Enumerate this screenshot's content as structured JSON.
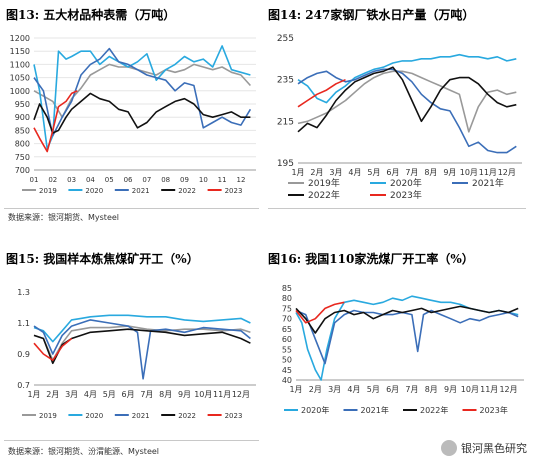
{
  "colors": {
    "y2019": "#999999",
    "y2020": "#29a9df",
    "y2021": "#3b6eb8",
    "y2022": "#111111",
    "y2023": "#e8281f"
  },
  "panels": [
    {
      "title": "图13: 五大材品种表需（万吨）",
      "source": "数据来源：银河期货、Mysteel"
    },
    {
      "title": "图14: 247家钢厂铁水日产量（万吨）",
      "source": ""
    },
    {
      "title": "图15: 我国样本炼焦煤矿开工（%）",
      "source": "数据来源：银河期货、汾渭能源、Mysteel"
    },
    {
      "title": "图16: 我国110家洗煤厂开工率（%）",
      "source": ""
    }
  ],
  "watermark": "银河黑色研究",
  "chart_data": [
    {
      "type": "line",
      "xlabels": [
        "01",
        "02",
        "03",
        "04",
        "05",
        "06",
        "07",
        "08",
        "09",
        "10",
        "11",
        "12"
      ],
      "ylim": [
        700,
        1200
      ],
      "yticks": [
        700,
        750,
        800,
        850,
        900,
        950,
        1000,
        1050,
        1100,
        1150,
        1200
      ],
      "legend": [
        "2019",
        "2020",
        "2021",
        "2022",
        "2023"
      ],
      "legend_position": "bottom",
      "series": [
        {
          "name": "2019",
          "x": [
            1,
            1.5,
            2,
            2.5,
            3,
            3.5,
            4,
            4.5,
            5,
            5.5,
            6,
            6.5,
            7,
            7.5,
            8,
            8.5,
            9,
            9.5,
            10,
            10.5,
            11,
            11.5,
            12,
            12.5
          ],
          "values": [
            1000,
            980,
            960,
            900,
            970,
            1010,
            1060,
            1080,
            1100,
            1090,
            1090,
            1080,
            1070,
            1060,
            1080,
            1070,
            1080,
            1100,
            1090,
            1080,
            1090,
            1070,
            1060,
            1020
          ]
        },
        {
          "name": "2020",
          "x": [
            1,
            1.3,
            1.7,
            2,
            2.3,
            2.7,
            3,
            3.5,
            4,
            4.5,
            5,
            5.5,
            6,
            6.5,
            7,
            7.5,
            8,
            8.5,
            9,
            9.5,
            10,
            10.5,
            11,
            11.5,
            12,
            12.5
          ],
          "values": [
            1100,
            1000,
            780,
            830,
            1150,
            1120,
            1130,
            1150,
            1150,
            1100,
            1130,
            1110,
            1090,
            1110,
            1140,
            1040,
            1080,
            1100,
            1130,
            1110,
            1120,
            1090,
            1170,
            1080,
            1070,
            1060
          ]
        },
        {
          "name": "2021",
          "x": [
            1,
            1.5,
            2,
            2.5,
            3,
            3.5,
            4,
            4.5,
            5,
            5.5,
            6,
            6.5,
            7,
            7.5,
            8,
            8.5,
            9,
            9.5,
            10,
            10.5,
            11,
            11.5,
            12,
            12.5
          ],
          "values": [
            1050,
            1000,
            830,
            900,
            960,
            1060,
            1100,
            1120,
            1160,
            1110,
            1100,
            1080,
            1060,
            1050,
            1040,
            1000,
            1030,
            1020,
            860,
            880,
            900,
            880,
            870,
            930
          ]
        },
        {
          "name": "2022",
          "x": [
            1,
            1.3,
            1.7,
            2,
            2.3,
            2.7,
            3,
            3.5,
            4,
            4.5,
            5,
            5.5,
            6,
            6.5,
            7,
            7.5,
            8,
            8.5,
            9,
            9.5,
            10,
            10.5,
            11,
            11.5,
            12,
            12.5
          ],
          "values": [
            890,
            950,
            900,
            840,
            850,
            900,
            930,
            960,
            990,
            970,
            960,
            930,
            920,
            860,
            880,
            920,
            940,
            960,
            970,
            950,
            910,
            900,
            910,
            920,
            900,
            900
          ]
        },
        {
          "name": "2023",
          "x": [
            1,
            1.3,
            1.7,
            2,
            2.3,
            2.7,
            3,
            3.3
          ],
          "values": [
            860,
            820,
            770,
            850,
            940,
            960,
            990,
            1000
          ]
        }
      ]
    },
    {
      "type": "line",
      "xlabels": [
        "1月",
        "2月",
        "3月",
        "4月",
        "5月",
        "6月",
        "7月",
        "8月",
        "9月",
        "10月",
        "11月",
        "12月"
      ],
      "ylim": [
        195,
        255
      ],
      "yticks": [
        195,
        215,
        235,
        255
      ],
      "legend": [
        "2019年",
        "2020年",
        "2021年",
        "2022年",
        "2023年"
      ],
      "legend_position": "bottom",
      "series": [
        {
          "name": "2019年",
          "x": [
            1,
            1.5,
            2,
            2.5,
            3,
            3.5,
            4,
            4.5,
            5,
            5.5,
            6,
            6.5,
            7,
            7.5,
            8,
            8.5,
            9,
            9.5,
            10,
            10.5,
            11,
            11.5,
            12,
            12.5
          ],
          "values": [
            214,
            215,
            217,
            219,
            222,
            225,
            229,
            233,
            236,
            238,
            239,
            239,
            238,
            236,
            234,
            232,
            230,
            228,
            210,
            222,
            229,
            230,
            228,
            229
          ]
        },
        {
          "name": "2020年",
          "x": [
            1,
            1.5,
            2,
            2.5,
            3,
            3.5,
            4,
            4.5,
            5,
            5.5,
            6,
            6.5,
            7,
            7.5,
            8,
            8.5,
            9,
            9.5,
            10,
            10.5,
            11,
            11.5,
            12,
            12.5
          ],
          "values": [
            235,
            232,
            226,
            224,
            229,
            232,
            236,
            238,
            240,
            241,
            243,
            244,
            244,
            245,
            245,
            246,
            246,
            247,
            246,
            246,
            245,
            246,
            244,
            245
          ]
        },
        {
          "name": "2021年",
          "x": [
            1,
            1.5,
            2,
            2.5,
            3,
            3.5,
            4,
            4.5,
            5,
            5.5,
            6,
            6.5,
            7,
            7.5,
            8,
            8.5,
            9,
            9.5,
            10,
            10.5,
            11,
            11.5,
            12,
            12.5
          ],
          "values": [
            233,
            236,
            238,
            239,
            236,
            234,
            235,
            237,
            239,
            240,
            240,
            238,
            234,
            228,
            224,
            221,
            220,
            212,
            203,
            205,
            201,
            200,
            200,
            203
          ]
        },
        {
          "name": "2022年",
          "x": [
            1,
            1.5,
            2,
            2.5,
            3,
            3.5,
            4,
            4.5,
            5,
            5.5,
            6,
            6.5,
            7,
            7.5,
            8,
            8.5,
            9,
            9.5,
            10,
            10.5,
            11,
            11.5,
            12,
            12.5
          ],
          "values": [
            210,
            214,
            212,
            218,
            225,
            230,
            234,
            236,
            238,
            239,
            241,
            235,
            225,
            215,
            222,
            230,
            235,
            236,
            236,
            233,
            228,
            224,
            222,
            223
          ]
        },
        {
          "name": "2023年",
          "x": [
            1,
            1.5,
            2,
            2.5,
            3,
            3.5
          ],
          "values": [
            222,
            225,
            228,
            230,
            233,
            235
          ]
        }
      ]
    },
    {
      "type": "line",
      "xlabels": [
        "1月",
        "2月",
        "3月",
        "4月",
        "5月",
        "6月",
        "7月",
        "8月",
        "9月",
        "10月",
        "11月",
        "12月"
      ],
      "ylim": [
        0.7,
        1.3
      ],
      "yticks": [
        0.7,
        0.8,
        0.9,
        1.0,
        1.1,
        1.2,
        1.3
      ],
      "yticklabels": [
        "0.7",
        "0.9",
        "1.1",
        "1.3"
      ],
      "legend": [
        "2019",
        "2020",
        "2021",
        "2022",
        "2023"
      ],
      "legend_position": "bottom",
      "series": [
        {
          "name": "2019",
          "x": [
            1,
            1.5,
            2,
            2.5,
            3,
            3.5,
            4,
            5,
            6,
            7,
            8,
            9,
            10,
            11,
            12,
            12.5
          ],
          "values": [
            1.02,
            1.0,
            0.86,
            0.97,
            1.05,
            1.06,
            1.07,
            1.07,
            1.08,
            1.06,
            1.05,
            1.06,
            1.06,
            1.05,
            1.06,
            1.04
          ]
        },
        {
          "name": "2020",
          "x": [
            1,
            1.5,
            2,
            2.5,
            3,
            3.5,
            4,
            5,
            6,
            7,
            8,
            9,
            10,
            11,
            12,
            12.5
          ],
          "values": [
            1.07,
            1.05,
            0.98,
            1.05,
            1.12,
            1.13,
            1.14,
            1.15,
            1.15,
            1.14,
            1.14,
            1.12,
            1.11,
            1.12,
            1.13,
            1.1
          ]
        },
        {
          "name": "2021",
          "x": [
            1,
            1.5,
            2,
            2.5,
            3,
            3.5,
            4,
            5,
            6,
            6.5,
            6.8,
            7.2,
            8,
            9,
            10,
            11,
            12,
            12.5
          ],
          "values": [
            1.08,
            1.04,
            0.9,
            1.02,
            1.08,
            1.1,
            1.12,
            1.1,
            1.08,
            1.04,
            0.74,
            1.05,
            1.06,
            1.04,
            1.07,
            1.06,
            1.05,
            1.0
          ]
        },
        {
          "name": "2022",
          "x": [
            1,
            1.5,
            2,
            2.5,
            3,
            3.5,
            4,
            5,
            6,
            7,
            8,
            9,
            10,
            11,
            12,
            12.5
          ],
          "values": [
            1.02,
            1.0,
            0.84,
            0.96,
            1.0,
            1.02,
            1.04,
            1.05,
            1.06,
            1.05,
            1.04,
            1.02,
            1.03,
            1.04,
            1.0,
            0.97
          ]
        },
        {
          "name": "2023",
          "x": [
            1,
            1.5,
            2,
            2.5,
            3
          ],
          "values": [
            0.97,
            0.9,
            0.86,
            0.95,
            1.0
          ]
        }
      ]
    },
    {
      "type": "line",
      "xlabels": [
        "1月",
        "2月",
        "3月",
        "4月",
        "5月",
        "6月",
        "7月",
        "8月",
        "9月",
        "10月",
        "11月",
        "12月"
      ],
      "ylim": [
        40,
        85
      ],
      "yticks": [
        40,
        45,
        50,
        55,
        60,
        65,
        70,
        75,
        80,
        85
      ],
      "legend": [
        "2020年",
        "2021年",
        "2022年",
        "2023年"
      ],
      "legend_position": "bottom",
      "series": [
        {
          "name": "2020年",
          "x": [
            1,
            1.3,
            1.6,
            2,
            2.3,
            2.6,
            3,
            3.5,
            4,
            4.5,
            5,
            5.5,
            6,
            6.5,
            7,
            7.5,
            8,
            8.5,
            9,
            9.5,
            10,
            10.5,
            11,
            11.5,
            12,
            12.5
          ],
          "values": [
            73,
            68,
            55,
            45,
            40,
            55,
            70,
            78,
            79,
            78,
            77,
            78,
            80,
            79,
            81,
            80,
            79,
            78,
            78,
            77,
            75,
            74,
            73,
            74,
            73,
            72
          ]
        },
        {
          "name": "2021年",
          "x": [
            1,
            1.5,
            2,
            2.5,
            3,
            3.5,
            4,
            4.5,
            5,
            5.5,
            6,
            6.5,
            7,
            7.3,
            7.6,
            8,
            8.5,
            9,
            9.5,
            10,
            10.5,
            11,
            11.5,
            12,
            12.5
          ],
          "values": [
            74,
            72,
            60,
            48,
            68,
            72,
            74,
            73,
            73,
            72,
            72,
            73,
            72,
            54,
            72,
            74,
            72,
            70,
            68,
            70,
            69,
            71,
            72,
            73,
            71
          ]
        },
        {
          "name": "2022年",
          "x": [
            1,
            1.5,
            2,
            2.5,
            3,
            3.5,
            4,
            4.5,
            5,
            5.5,
            6,
            6.5,
            7,
            7.5,
            8,
            8.5,
            9,
            9.5,
            10,
            10.5,
            11,
            11.5,
            12,
            12.5
          ],
          "values": [
            75,
            70,
            63,
            70,
            73,
            74,
            72,
            73,
            70,
            72,
            74,
            73,
            74,
            75,
            73,
            74,
            75,
            76,
            75,
            74,
            73,
            74,
            73,
            75
          ]
        },
        {
          "name": "2023年",
          "x": [
            1,
            1.5,
            2,
            2.5,
            3,
            3.5
          ],
          "values": [
            74,
            68,
            70,
            75,
            77,
            78
          ]
        }
      ]
    }
  ]
}
